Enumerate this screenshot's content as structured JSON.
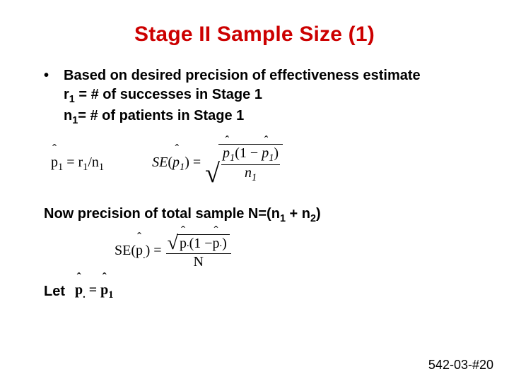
{
  "colors": {
    "title": "#cc0000",
    "body": "#000000",
    "background": "#ffffff"
  },
  "title": "Stage II Sample Size  (1)",
  "bullet": {
    "line1": "Based on desired precision of effectiveness estimate",
    "r_prefix": "r",
    "r_sub": "1",
    "r_rest": " = # of successes in Stage 1",
    "n_prefix": "n",
    "n_sub": "1",
    "n_rest": "= # of patients in Stage 1"
  },
  "formula1": {
    "lhs_p": "p",
    "lhs_sub": "1",
    "eq": " = ",
    "r": "r",
    "r_sub": "1",
    "slash": "/",
    "n": "n",
    "n_sub": "1"
  },
  "se1": {
    "SE": "SE",
    "open": "(",
    "p": "p",
    "psub": "1",
    "close": ")",
    "eq": " = ",
    "num_p1": "p",
    "num_p1_sub": "1",
    "num_open": "(1 − ",
    "num_p2": "p",
    "num_p2_sub": "1",
    "num_close": ")",
    "den_n": "n",
    "den_n_sub": "1"
  },
  "now": {
    "prefix": "Now precision of total sample N=(n",
    "sub1": "1",
    "mid": " + n",
    "sub2": "2",
    "suffix": ")"
  },
  "se2": {
    "SE": "SE",
    "open": "(",
    "p": "p",
    "psub": ".",
    "close": ")",
    "eq": " = ",
    "num_p1": "p",
    "num_p1_sub": ".",
    "num_open": "(1 − ",
    "num_p2": "p",
    "num_p2_sub": ".",
    "num_close": ")",
    "den": "N"
  },
  "let": {
    "label": "Let",
    "lhs_p": "p",
    "lhs_sub": ".",
    "eq": " = ",
    "rhs_p": "p",
    "rhs_sub": "1"
  },
  "footer": "542-03-#20"
}
